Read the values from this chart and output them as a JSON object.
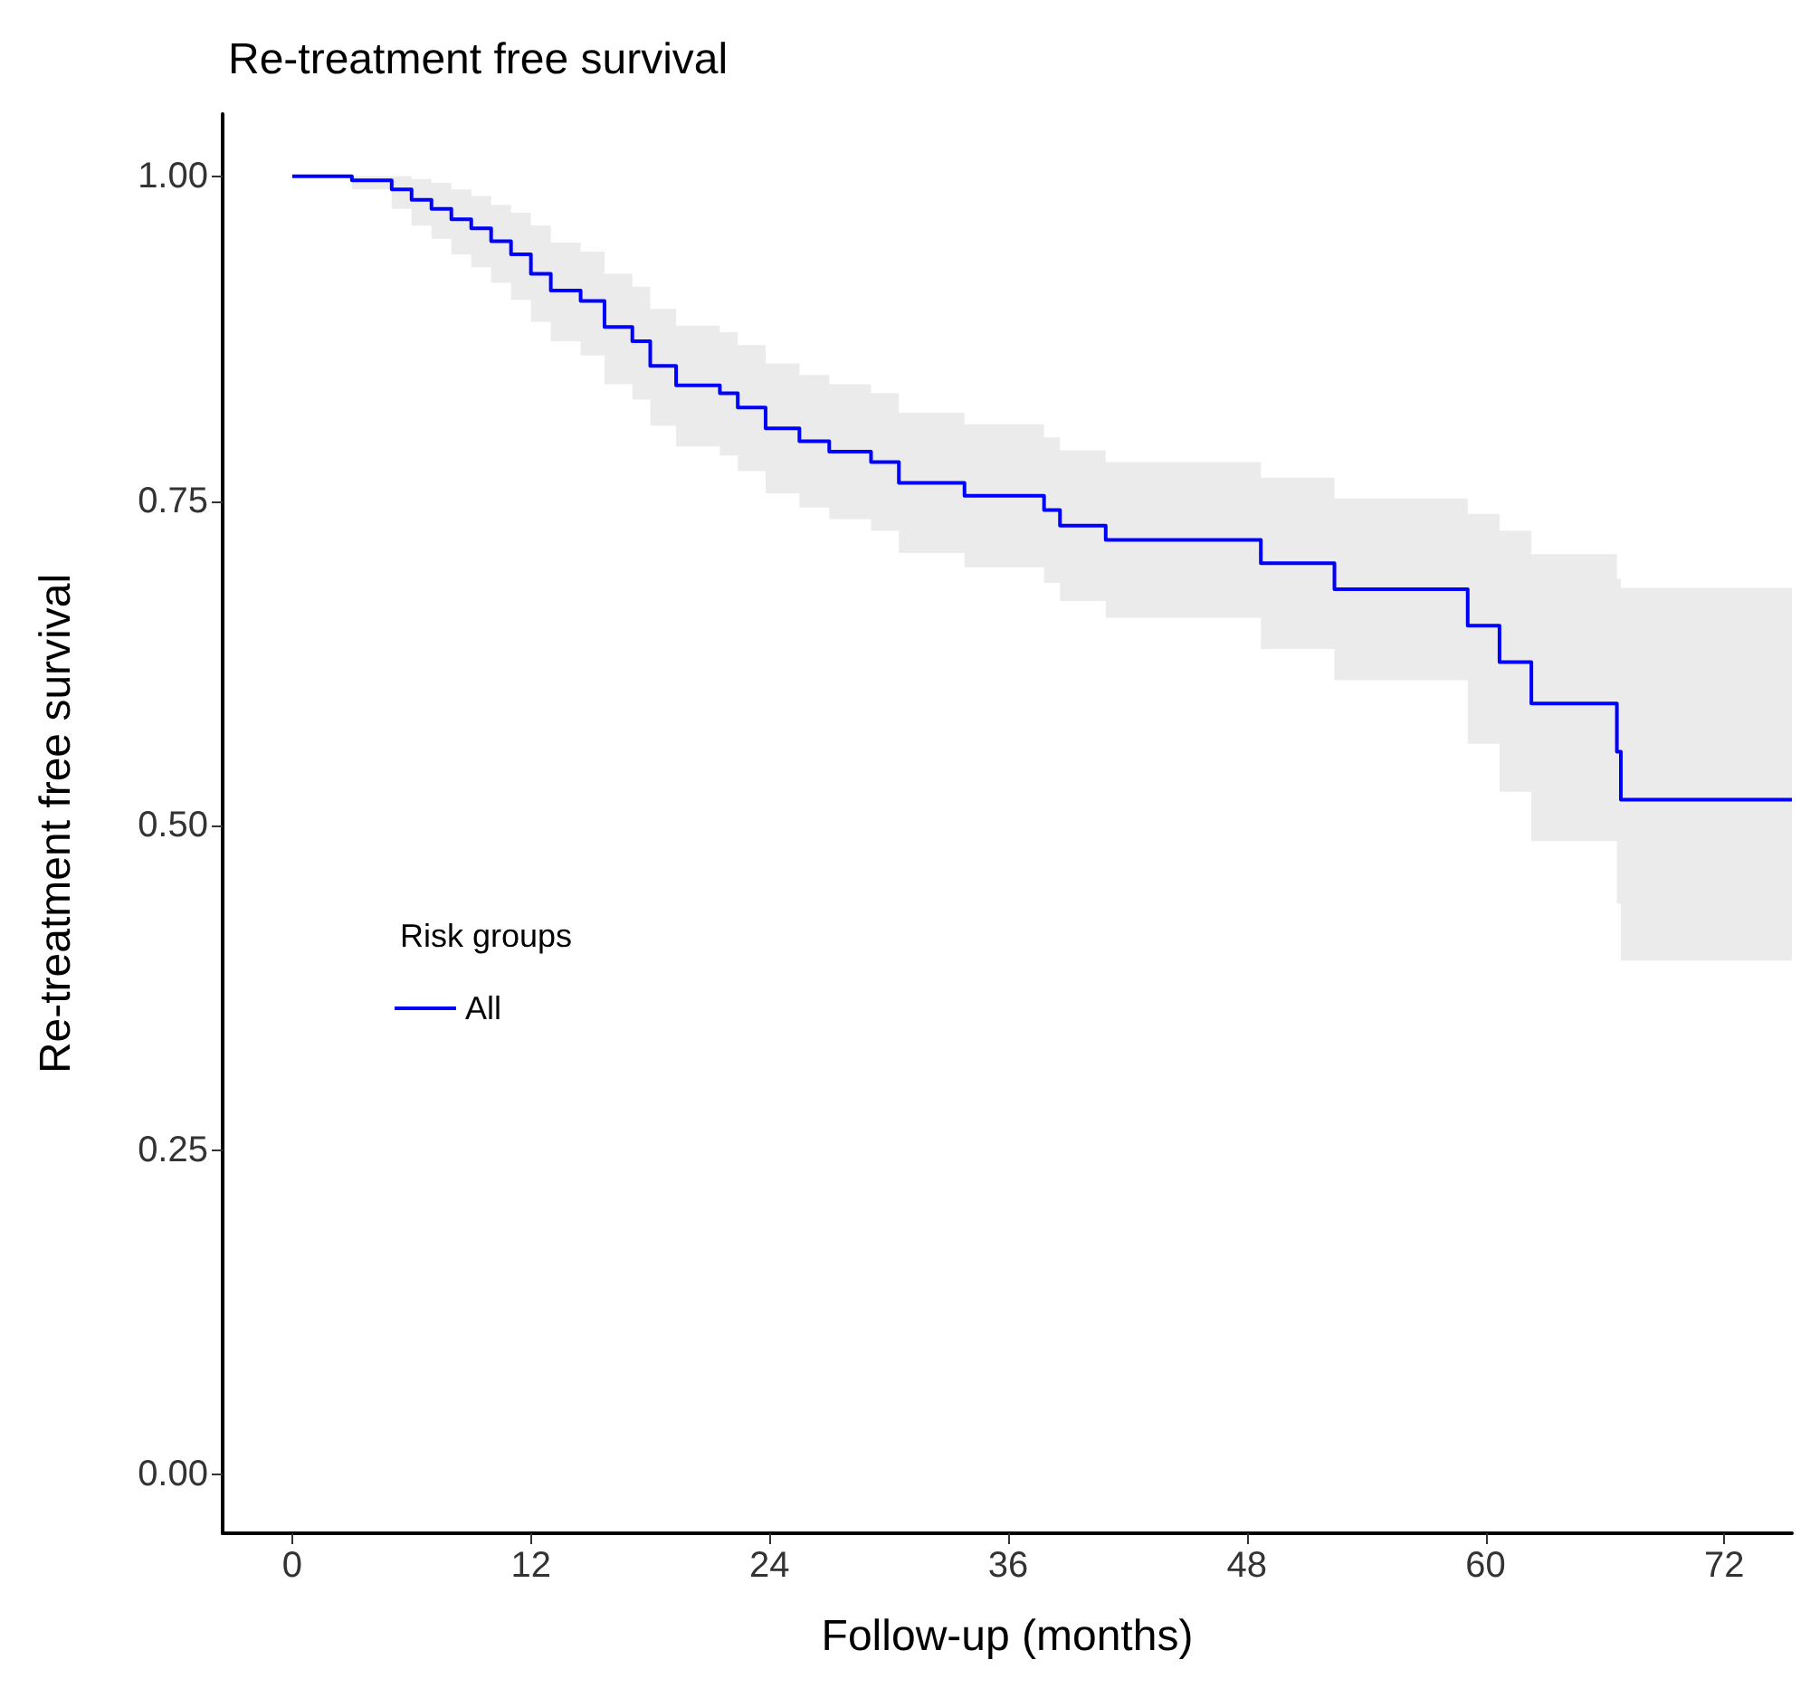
{
  "chart_data": {
    "type": "step",
    "title": "Re-treatment free survival",
    "xlabel": "Follow-up (months)",
    "ylabel": "Re-treatment free survival",
    "legend_title": "Risk groups",
    "legend": "left",
    "grid": false,
    "x": [
      0,
      3,
      5,
      6,
      7,
      8,
      9,
      10,
      11,
      12,
      13,
      14.5,
      15.7,
      17.1,
      18,
      19.3,
      21.5,
      22.4,
      23.8,
      25.5,
      27,
      29.1,
      30.5,
      33.8,
      37.8,
      38.6,
      40.9,
      48.7,
      52.4,
      59.1,
      60.7,
      62.3,
      66.6,
      66.8,
      75.4
    ],
    "series": [
      {
        "name": "All",
        "color": "#0000ff",
        "values": [
          1.0,
          0.997,
          0.99,
          0.982,
          0.975,
          0.967,
          0.96,
          0.95,
          0.94,
          0.925,
          0.912,
          0.904,
          0.884,
          0.873,
          0.854,
          0.839,
          0.833,
          0.822,
          0.806,
          0.796,
          0.788,
          0.78,
          0.764,
          0.754,
          0.743,
          0.731,
          0.72,
          0.702,
          0.682,
          0.654,
          0.626,
          0.594,
          0.557,
          0.52,
          0.52
        ],
        "lower": [
          1.0,
          0.99,
          0.975,
          0.962,
          0.952,
          0.94,
          0.93,
          0.918,
          0.905,
          0.888,
          0.873,
          0.862,
          0.84,
          0.828,
          0.808,
          0.792,
          0.785,
          0.773,
          0.756,
          0.745,
          0.736,
          0.727,
          0.71,
          0.699,
          0.687,
          0.673,
          0.66,
          0.636,
          0.612,
          0.563,
          0.526,
          0.488,
          0.44,
          0.396,
          0.396
        ],
        "upper": [
          1.0,
          1.0,
          1.0,
          0.998,
          0.995,
          0.99,
          0.985,
          0.978,
          0.972,
          0.962,
          0.949,
          0.942,
          0.925,
          0.915,
          0.898,
          0.885,
          0.88,
          0.87,
          0.856,
          0.847,
          0.84,
          0.833,
          0.818,
          0.809,
          0.799,
          0.789,
          0.78,
          0.768,
          0.752,
          0.74,
          0.727,
          0.709,
          0.69,
          0.683,
          0.683
        ]
      }
    ],
    "xlim": [
      -3.5,
      75.4
    ],
    "xticks": [
      0,
      12,
      24,
      36,
      48,
      60,
      72
    ],
    "ylim": [
      -0.045,
      1.048
    ],
    "yticks": [
      {
        "value": 0,
        "label": "0.00"
      },
      {
        "value": 0.25,
        "label": "0.25"
      },
      {
        "value": 0.5,
        "label": "0.50"
      },
      {
        "value": 0.75,
        "label": "0.75"
      },
      {
        "value": 1,
        "label": "1.00"
      }
    ]
  }
}
